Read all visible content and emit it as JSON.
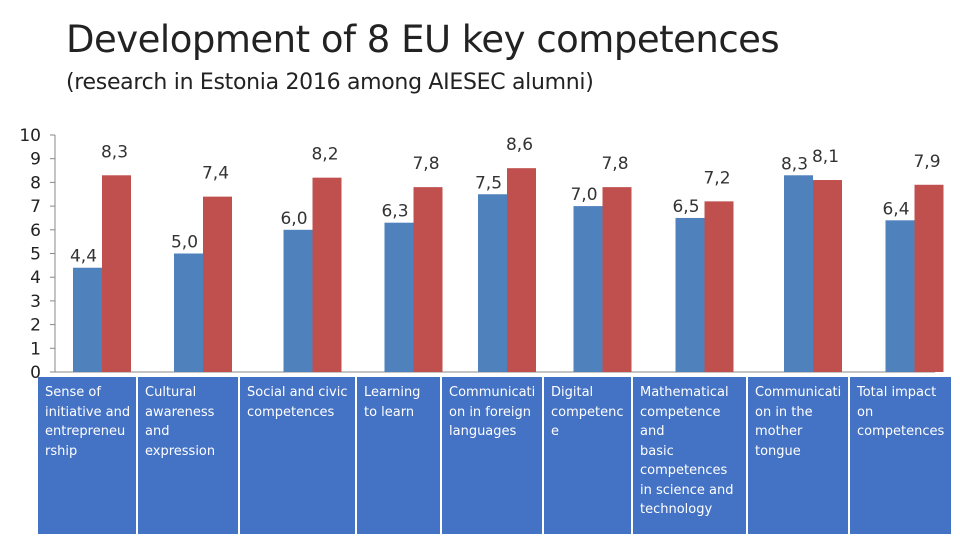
{
  "title": "Development of 8 EU key competences",
  "subtitle": "(research in Estonia 2016 among AIESEC alumni)",
  "colors": {
    "series_1": "#4f81bd",
    "series_2": "#c0504d",
    "table_bg": "#4472c4"
  },
  "chart_data": {
    "type": "bar",
    "title": "Development of 8 EU key competences",
    "subtitle": "(research in Estonia 2016 among AIESEC alumni)",
    "categories": [
      "Sense of initiative and entrepreneu rship",
      "Cultural awareness and expression",
      "Social and civic competences",
      "Learning to learn",
      "Communicati on in foreign languages",
      "Digital competenc e",
      "Mathematical competence and basic competences in science and technology",
      "Communicati on in the mother tongue",
      "Total impact on competences"
    ],
    "category_lines": [
      [
        "Sense of",
        "initiative and",
        "entrepreneu",
        "rship"
      ],
      [
        "Cultural",
        "awareness",
        "and",
        "expression"
      ],
      [
        "Social and civic",
        "competences"
      ],
      [
        "Learning",
        "to learn"
      ],
      [
        "Communicati",
        "on in foreign",
        "languages"
      ],
      [
        "Digital",
        "competenc",
        "e"
      ],
      [
        "Mathematical",
        "competence",
        "and",
        "basic",
        "competences",
        "in science and",
        "technology"
      ],
      [
        "Communicati",
        "on in the",
        "mother",
        "tongue"
      ],
      [
        "Total impact",
        "on",
        "competences"
      ]
    ],
    "series": [
      {
        "values": [
          4.4,
          5.0,
          6.0,
          6.3,
          7.5,
          7.0,
          6.5,
          8.3,
          6.4
        ],
        "labels": [
          "4,4",
          "5,0",
          "6,0",
          "6,3",
          "7,5",
          "7,0",
          "6,5",
          "8,3",
          "6,4"
        ],
        "color": "#4f81bd"
      },
      {
        "values": [
          8.3,
          7.4,
          8.2,
          7.8,
          8.6,
          7.8,
          7.2,
          8.1,
          7.9
        ],
        "labels": [
          "8,3",
          "7,4",
          "8,2",
          "7,8",
          "8,6",
          "7,8",
          "7,2",
          "8,1",
          "7,9"
        ],
        "color": "#c0504d"
      }
    ],
    "yticks": [
      "0",
      "1",
      "2",
      "3",
      "4",
      "5",
      "6",
      "7",
      "8",
      "9",
      "10"
    ],
    "ylim": [
      0,
      10
    ],
    "grid": false,
    "legend": "none"
  }
}
